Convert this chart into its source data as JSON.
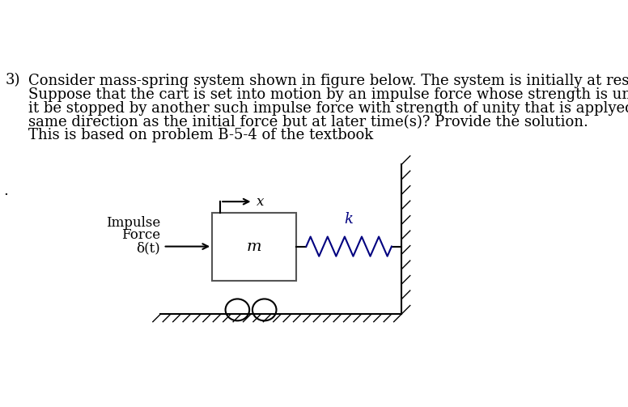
{
  "background_color": "#ffffff",
  "text_color": "#000000",
  "problem_number": "3)",
  "line1": "Consider mass-spring system shown in figure below. The system is initially at rest.",
  "line2": "Suppose that the cart is set into motion by an impulse force whose strength is unity. Can",
  "line3": "it be stopped by another such impulse force with strength of unity that is applyed in the",
  "line4": "same direction as the initial force but at later time(s)? Provide the solution.",
  "line5": "This is based on problem B-5-4 of the textbook",
  "impulse_label_line1": "Impulse",
  "impulse_label_line2": "Force",
  "impulse_label_line3": "δ(t)",
  "mass_label": "m",
  "spring_label": "k",
  "x_label": "x",
  "font_size_body": 13,
  "font_size_diagram": 12,
  "spring_color": "#000080",
  "k_color": "#000080"
}
